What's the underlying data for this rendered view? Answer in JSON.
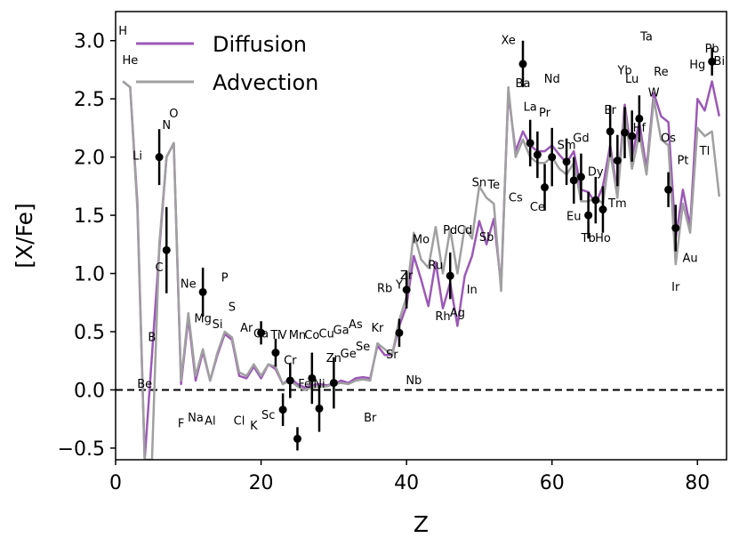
{
  "chart_data": {
    "type": "line",
    "xlabel": "Z",
    "ylabel": "[X/Fe]",
    "xlim": [
      0,
      84
    ],
    "ylim": [
      -0.6,
      3.25
    ],
    "x_ticks": [
      0,
      20,
      40,
      60,
      80
    ],
    "y_ticks": [
      -0.5,
      0.0,
      0.5,
      1.0,
      1.5,
      2.0,
      2.5,
      3.0
    ],
    "y_tick_labels": [
      "−0.5",
      "0.0",
      "0.5",
      "1.0",
      "1.5",
      "2.0",
      "2.5",
      "3.0"
    ],
    "reference_line": {
      "y": 0.0,
      "style": "dashed",
      "color": "#000000"
    },
    "legend": {
      "position": "top-left"
    },
    "series": [
      {
        "name": "Diffusion",
        "color": "#9b59b6",
        "x": [
          1,
          2,
          3,
          4,
          5,
          6,
          7,
          8,
          9,
          10,
          11,
          12,
          13,
          14,
          15,
          16,
          17,
          18,
          19,
          20,
          21,
          22,
          23,
          24,
          25,
          26,
          27,
          28,
          29,
          30,
          31,
          32,
          33,
          34,
          35,
          36,
          37,
          38,
          39,
          40,
          41,
          42,
          43,
          44,
          45,
          46,
          47,
          48,
          49,
          50,
          51,
          52,
          53,
          54,
          55,
          56,
          57,
          58,
          59,
          60,
          61,
          62,
          63,
          64,
          65,
          66,
          67,
          68,
          69,
          70,
          71,
          72,
          73,
          74,
          75,
          76,
          77,
          78,
          79,
          80,
          81,
          82,
          83
        ],
        "values": [
          2.65,
          2.6,
          1.6,
          -0.6,
          null,
          1.2,
          2.0,
          2.12,
          0.05,
          0.62,
          0.08,
          0.33,
          0.08,
          0.3,
          0.48,
          0.43,
          0.12,
          0.1,
          0.2,
          0.1,
          0.22,
          0.18,
          0.05,
          0.1,
          0.05,
          0.02,
          0.04,
          0.05,
          0.04,
          0.05,
          0.08,
          0.06,
          0.1,
          0.11,
          0.1,
          0.38,
          0.3,
          0.3,
          0.55,
          0.72,
          1.15,
          0.95,
          0.72,
          1.1,
          0.7,
          0.92,
          0.55,
          0.98,
          1.15,
          1.45,
          1.25,
          1.47,
          0.9,
          2.55,
          2.05,
          2.22,
          2.1,
          2.05,
          2.05,
          2.1,
          2.02,
          1.95,
          2.05,
          1.72,
          1.7,
          1.6,
          1.75,
          2.1,
          1.7,
          2.45,
          2.0,
          2.3,
          1.9,
          2.55,
          2.35,
          2.3,
          1.3,
          1.72,
          1.4,
          2.5,
          2.4,
          2.65,
          2.35
        ]
      },
      {
        "name": "Advection",
        "color": "#a0a0a0",
        "x": [
          1,
          2,
          3,
          4,
          5,
          6,
          7,
          8,
          9,
          10,
          11,
          12,
          13,
          14,
          15,
          16,
          17,
          18,
          19,
          20,
          21,
          22,
          23,
          24,
          25,
          26,
          27,
          28,
          29,
          30,
          31,
          32,
          33,
          34,
          35,
          36,
          37,
          38,
          39,
          40,
          41,
          42,
          43,
          44,
          45,
          46,
          47,
          48,
          49,
          50,
          51,
          52,
          53,
          54,
          55,
          56,
          57,
          58,
          59,
          60,
          61,
          62,
          63,
          64,
          65,
          66,
          67,
          68,
          69,
          70,
          71,
          72,
          73,
          74,
          75,
          76,
          77,
          78,
          79,
          80,
          81,
          82,
          83
        ],
        "values": [
          2.65,
          2.6,
          1.55,
          -0.6,
          -0.6,
          1.25,
          2.0,
          2.12,
          0.08,
          0.66,
          0.12,
          0.35,
          0.08,
          0.32,
          0.5,
          0.45,
          0.15,
          0.12,
          0.22,
          0.12,
          0.22,
          0.2,
          0.05,
          0.08,
          0.03,
          0.0,
          0.02,
          0.03,
          0.03,
          0.05,
          0.06,
          0.05,
          0.08,
          0.09,
          0.08,
          0.4,
          0.35,
          0.3,
          0.6,
          0.8,
          1.35,
          1.12,
          1.05,
          1.4,
          1.0,
          1.38,
          1.0,
          1.4,
          1.3,
          1.75,
          1.65,
          1.6,
          0.85,
          2.6,
          2.0,
          2.15,
          2.0,
          1.95,
          1.95,
          2.0,
          1.9,
          1.85,
          1.95,
          1.62,
          1.62,
          1.65,
          1.6,
          2.05,
          1.65,
          2.4,
          1.9,
          2.2,
          1.85,
          2.5,
          2.15,
          2.1,
          1.08,
          1.6,
          1.35,
          2.25,
          2.18,
          2.22,
          1.66
        ]
      }
    ],
    "observations": {
      "marker": "filled-circle",
      "color": "#000000",
      "x": [
        6,
        7,
        12,
        20,
        22,
        23,
        24,
        25,
        27,
        28,
        30,
        39,
        40,
        46,
        56,
        57,
        58,
        59,
        60,
        62,
        63,
        64,
        65,
        66,
        67,
        68,
        69,
        70,
        71,
        72,
        76,
        77,
        82
      ],
      "y": [
        2.0,
        1.2,
        0.84,
        0.49,
        0.32,
        -0.17,
        0.08,
        -0.42,
        0.1,
        -0.16,
        0.06,
        0.49,
        0.86,
        0.98,
        2.8,
        2.12,
        2.02,
        1.74,
        2.0,
        1.96,
        1.8,
        1.83,
        1.5,
        1.63,
        1.55,
        2.22,
        1.97,
        2.21,
        2.18,
        2.33,
        1.72,
        1.39,
        2.82
      ],
      "err": [
        0.24,
        0.37,
        0.21,
        0.1,
        0.12,
        0.14,
        0.15,
        0.1,
        0.22,
        0.2,
        0.22,
        0.12,
        0.16,
        0.2,
        0.2,
        0.2,
        0.2,
        0.2,
        0.25,
        0.2,
        0.2,
        0.2,
        0.2,
        0.2,
        0.2,
        0.22,
        0.22,
        0.22,
        0.22,
        0.2,
        0.15,
        0.2,
        0.12
      ]
    },
    "element_labels": [
      {
        "text": "H",
        "x": 1,
        "y": 3.05
      },
      {
        "text": "He",
        "x": 2,
        "y": 2.8
      },
      {
        "text": "Li",
        "x": 3,
        "y": 1.98
      },
      {
        "text": "Be",
        "x": 4,
        "y": 0.02
      },
      {
        "text": "B",
        "x": 5,
        "y": 0.42
      },
      {
        "text": "C",
        "x": 6,
        "y": 1.02
      },
      {
        "text": "N",
        "x": 7,
        "y": 2.24
      },
      {
        "text": "O",
        "x": 8,
        "y": 2.34
      },
      {
        "text": "F",
        "x": 9,
        "y": -0.32
      },
      {
        "text": "Ne",
        "x": 10,
        "y": 0.88
      },
      {
        "text": "Na",
        "x": 11,
        "y": -0.27
      },
      {
        "text": "Mg",
        "x": 12,
        "y": 0.58
      },
      {
        "text": "Al",
        "x": 13,
        "y": -0.3
      },
      {
        "text": "Si",
        "x": 14,
        "y": 0.53
      },
      {
        "text": "P",
        "x": 15,
        "y": 0.93
      },
      {
        "text": "S",
        "x": 16,
        "y": 0.68
      },
      {
        "text": "Cl",
        "x": 17,
        "y": -0.3
      },
      {
        "text": "Ar",
        "x": 18,
        "y": 0.5
      },
      {
        "text": "K",
        "x": 19,
        "y": -0.34
      },
      {
        "text": "Ca",
        "x": 20,
        "y": 0.45
      },
      {
        "text": "Sc",
        "x": 21,
        "y": -0.25
      },
      {
        "text": "Ti",
        "x": 22,
        "y": 0.44
      },
      {
        "text": "V",
        "x": 23,
        "y": 0.44
      },
      {
        "text": "Cr",
        "x": 24,
        "y": 0.22
      },
      {
        "text": "Mn",
        "x": 25,
        "y": 0.44
      },
      {
        "text": "Fe",
        "x": 26,
        "y": 0.02
      },
      {
        "text": "Co",
        "x": 27,
        "y": 0.44
      },
      {
        "text": "Ni",
        "x": 28,
        "y": 0.02
      },
      {
        "text": "Cu",
        "x": 29,
        "y": 0.45
      },
      {
        "text": "Zn",
        "x": 30,
        "y": 0.24
      },
      {
        "text": "Ga",
        "x": 31,
        "y": 0.48
      },
      {
        "text": "Ge",
        "x": 32,
        "y": 0.28
      },
      {
        "text": "As",
        "x": 33,
        "y": 0.53
      },
      {
        "text": "Se",
        "x": 34,
        "y": 0.34
      },
      {
        "text": "Br",
        "x": 35,
        "y": -0.27
      },
      {
        "text": "Kr",
        "x": 36,
        "y": 0.5
      },
      {
        "text": "Rb",
        "x": 37,
        "y": 0.84
      },
      {
        "text": "Sr",
        "x": 38,
        "y": 0.27
      },
      {
        "text": "Y",
        "x": 39,
        "y": 0.87
      },
      {
        "text": "Zr",
        "x": 40,
        "y": 0.95
      },
      {
        "text": "Nb",
        "x": 41,
        "y": 0.05
      },
      {
        "text": "Mo",
        "x": 42,
        "y": 1.26
      },
      {
        "text": "Ru",
        "x": 44,
        "y": 1.04
      },
      {
        "text": "Rh",
        "x": 45,
        "y": 0.6
      },
      {
        "text": "Pd",
        "x": 46,
        "y": 1.34
      },
      {
        "text": "Ag",
        "x": 47,
        "y": 0.63
      },
      {
        "text": "Cd",
        "x": 48,
        "y": 1.34
      },
      {
        "text": "In",
        "x": 49,
        "y": 0.83
      },
      {
        "text": "Sn",
        "x": 50,
        "y": 1.75
      },
      {
        "text": "Sb",
        "x": 51,
        "y": 1.28
      },
      {
        "text": "Te",
        "x": 52,
        "y": 1.73
      },
      {
        "text": "Cs",
        "x": 55,
        "y": 1.62
      },
      {
        "text": "Xe",
        "x": 54,
        "y": 2.97
      },
      {
        "text": "Ba",
        "x": 56,
        "y": 2.6
      },
      {
        "text": "La",
        "x": 57,
        "y": 2.4
      },
      {
        "text": "Ce",
        "x": 58,
        "y": 1.54
      },
      {
        "text": "Pr",
        "x": 59,
        "y": 2.35
      },
      {
        "text": "Nd",
        "x": 60,
        "y": 2.64
      },
      {
        "text": "Sm",
        "x": 62,
        "y": 2.07
      },
      {
        "text": "Eu",
        "x": 63,
        "y": 1.46
      },
      {
        "text": "Gd",
        "x": 64,
        "y": 2.13
      },
      {
        "text": "Tb",
        "x": 65,
        "y": 1.27
      },
      {
        "text": "Dy",
        "x": 66,
        "y": 1.84
      },
      {
        "text": "Ho",
        "x": 67,
        "y": 1.27
      },
      {
        "text": "Er",
        "x": 68,
        "y": 2.37
      },
      {
        "text": "Tm",
        "x": 69,
        "y": 1.57
      },
      {
        "text": "Yb",
        "x": 70,
        "y": 2.71
      },
      {
        "text": "Lu",
        "x": 71,
        "y": 2.64
      },
      {
        "text": "Hf",
        "x": 72,
        "y": 2.22
      },
      {
        "text": "Ta",
        "x": 73,
        "y": 3.0
      },
      {
        "text": "W",
        "x": 74,
        "y": 2.52
      },
      {
        "text": "Re",
        "x": 75,
        "y": 2.7
      },
      {
        "text": "Os",
        "x": 76,
        "y": 2.13
      },
      {
        "text": "Ir",
        "x": 77,
        "y": 0.85
      },
      {
        "text": "Pt",
        "x": 78,
        "y": 1.94
      },
      {
        "text": "Au",
        "x": 79,
        "y": 1.1
      },
      {
        "text": "Hg",
        "x": 80,
        "y": 2.76
      },
      {
        "text": "Tl",
        "x": 81,
        "y": 2.02
      },
      {
        "text": "Pb",
        "x": 82,
        "y": 2.9
      },
      {
        "text": "Bi",
        "x": 83,
        "y": 2.79
      }
    ]
  }
}
